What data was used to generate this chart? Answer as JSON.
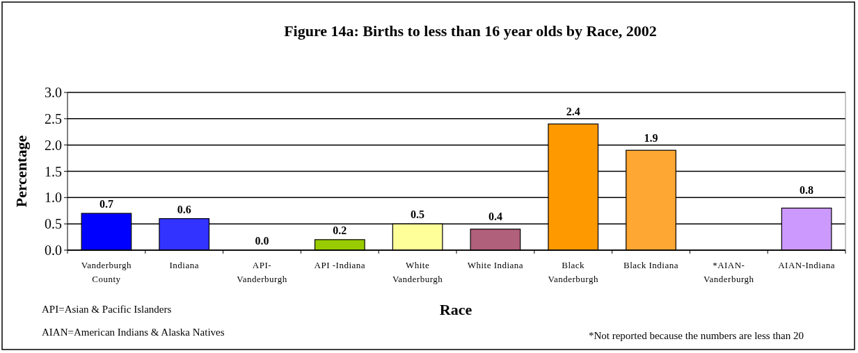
{
  "chart_data": {
    "type": "bar",
    "title": "Figure 14a: Births to less than 16 year olds by Race, 2002",
    "xlabel": "Race",
    "ylabel": "Percentage",
    "categories": [
      "Vanderburgh County",
      "Indiana",
      "API- Vanderburgh",
      "API -Indiana",
      "White Vanderburgh",
      "White Indiana",
      "Black Vanderburgh",
      "Black Indiana",
      "*AIAN- Vanderburgh",
      "AIAN-Indiana"
    ],
    "values": [
      0.7,
      0.6,
      0.0,
      0.2,
      0.5,
      0.4,
      2.4,
      1.9,
      null,
      0.8
    ],
    "value_labels": [
      "0.7",
      "0.6",
      "0.0",
      "0.2",
      "0.5",
      "0.4",
      "2.4",
      "1.9",
      null,
      "0.8"
    ],
    "colors": [
      "#0000ff",
      "#3333ff",
      "#000000",
      "#99cc00",
      "#ffff99",
      "#b0607a",
      "#ff9900",
      "#ffa733",
      null,
      "#cc99ff"
    ],
    "ylim": [
      0,
      3
    ],
    "yticks": [
      {
        "value": 0,
        "label": "0.0"
      },
      {
        "value": 0.5,
        "label": "0.5"
      },
      {
        "value": 1,
        "label": "1.0"
      },
      {
        "value": 1.5,
        "label": "1.5"
      },
      {
        "value": 2,
        "label": "2.0"
      },
      {
        "value": 2.5,
        "label": "2.5"
      },
      {
        "value": 3,
        "label": "3.0"
      }
    ],
    "grid": "y",
    "annotations": [
      "API=Asian & Pacific Islanders",
      "AIAN=American Indians & Alaska Natives",
      "*Not reported because the numbers are less than 20"
    ]
  }
}
